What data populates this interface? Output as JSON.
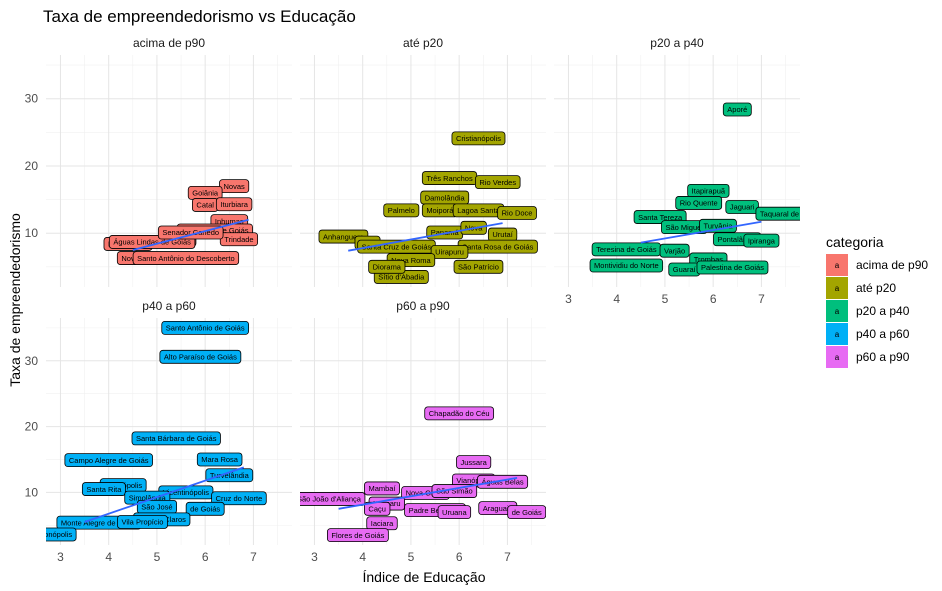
{
  "chart_data": {
    "type": "scatter",
    "title": "Taxa de empreendedorismo vs Educação",
    "xlabel": "Índice de Educação",
    "ylabel": "Taxa de empreendedorismo",
    "xlim": [
      2.7,
      7.8
    ],
    "ylim": [
      2.0,
      36.5
    ],
    "xticks": [
      3,
      4,
      5,
      6,
      7
    ],
    "yticks": [
      10,
      20,
      30
    ],
    "legend": {
      "title": "categoria",
      "position": "right",
      "entries": [
        {
          "name": "acima de p90",
          "color": "#F8766D",
          "key": "a"
        },
        {
          "name": "até p20",
          "color": "#A3A500",
          "key": "a"
        },
        {
          "name": "p20 a p40",
          "color": "#00BF7D",
          "key": "a"
        },
        {
          "name": "p40 a p60",
          "color": "#00B0F6",
          "key": "a"
        },
        {
          "name": "p60 a p90",
          "color": "#E76BF3",
          "key": "a"
        }
      ]
    },
    "panels": [
      {
        "name": "acima de p90",
        "color": "#F8766D",
        "trend": [
          [
            4.5,
            7.5
          ],
          [
            6.9,
            12.0
          ]
        ],
        "points": [
          {
            "label": "Novas",
            "x": 6.6,
            "y": 17.0
          },
          {
            "label": "Goiânia",
            "x": 6.0,
            "y": 16.0
          },
          {
            "label": "Catal",
            "x": 6.0,
            "y": 14.2
          },
          {
            "label": "Iturbiara",
            "x": 6.6,
            "y": 14.3
          },
          {
            "label": "Inhumas",
            "x": 6.5,
            "y": 11.8
          },
          {
            "label": "Valparaíso de Goiás",
            "x": 6.2,
            "y": 10.4
          },
          {
            "label": "Trindade",
            "x": 6.7,
            "y": 9.1
          },
          {
            "label": "Luz",
            "x": 5.6,
            "y": 9.0
          },
          {
            "label": "Novo Gama",
            "x": 4.4,
            "y": 8.4
          },
          {
            "label": "Águas Lindas de Goiás",
            "x": 4.9,
            "y": 8.7
          },
          {
            "label": "Senador Canedo",
            "x": 5.7,
            "y": 10.1
          },
          {
            "label": "Nov",
            "x": 4.4,
            "y": 6.3
          },
          {
            "label": "Santo Antônio do Descoberto",
            "x": 5.6,
            "y": 6.3
          }
        ]
      },
      {
        "name": "até p20",
        "color": "#A3A500",
        "trend": [
          [
            3.7,
            7.4
          ],
          [
            6.9,
            11.5
          ]
        ],
        "points": [
          {
            "label": "Cristianópolis",
            "x": 6.4,
            "y": 24.1
          },
          {
            "label": "Três Ranchos",
            "x": 5.8,
            "y": 18.2
          },
          {
            "label": "Rio Verdes",
            "x": 6.8,
            "y": 17.6
          },
          {
            "label": "Damolândia",
            "x": 5.7,
            "y": 15.3
          },
          {
            "label": "Palmelo",
            "x": 4.8,
            "y": 13.4
          },
          {
            "label": "Moiporá",
            "x": 5.6,
            "y": 13.4
          },
          {
            "label": "Lagoa Santa",
            "x": 6.4,
            "y": 13.4
          },
          {
            "label": "Rio Doce",
            "x": 7.2,
            "y": 13.0
          },
          {
            "label": "Anhanguera",
            "x": 3.6,
            "y": 9.5
          },
          {
            "label": "Panamá",
            "x": 5.7,
            "y": 10.1
          },
          {
            "label": "Nova",
            "x": 6.3,
            "y": 10.8
          },
          {
            "label": "Urutaí",
            "x": 6.9,
            "y": 9.8
          },
          {
            "label": "Pires",
            "x": 4.1,
            "y": 8.6
          },
          {
            "label": "Santa Cruz de Goiás",
            "x": 4.7,
            "y": 8.0
          },
          {
            "label": "Santa Rosa de Goiás",
            "x": 6.8,
            "y": 8.0
          },
          {
            "label": "Uirapuru",
            "x": 5.8,
            "y": 7.2
          },
          {
            "label": "Nova Roma",
            "x": 5.0,
            "y": 6.0
          },
          {
            "label": "São Patrício",
            "x": 6.4,
            "y": 5.0
          },
          {
            "label": "Sítio d'Abadia",
            "x": 4.8,
            "y": 3.5
          },
          {
            "label": "Diorama",
            "x": 4.5,
            "y": 5.0
          }
        ]
      },
      {
        "name": "p20 a p40",
        "color": "#00BF7D",
        "trend": [
          [
            4.5,
            8.6
          ],
          [
            7.0,
            11.7
          ]
        ],
        "points": [
          {
            "label": "Aporé",
            "x": 6.5,
            "y": 28.4
          },
          {
            "label": "Itapirapuã",
            "x": 5.9,
            "y": 16.3
          },
          {
            "label": "Rio Quente",
            "x": 5.7,
            "y": 14.5
          },
          {
            "label": "Jaguari",
            "x": 6.6,
            "y": 13.9
          },
          {
            "label": "Taquaral de Goiás",
            "x": 7.6,
            "y": 12.9
          },
          {
            "label": "Santa Tereza",
            "x": 4.9,
            "y": 12.4
          },
          {
            "label": "São Miguel",
            "x": 5.4,
            "y": 10.9
          },
          {
            "label": "Turvânia",
            "x": 6.1,
            "y": 11.1
          },
          {
            "label": "Pontalândia",
            "x": 6.5,
            "y": 9.1
          },
          {
            "label": "Ipiranga",
            "x": 7.0,
            "y": 8.9
          },
          {
            "label": "Teresina de Goiás",
            "x": 4.2,
            "y": 7.6
          },
          {
            "label": "Varjão",
            "x": 5.2,
            "y": 7.4
          },
          {
            "label": "Trombas",
            "x": 5.9,
            "y": 6.1
          },
          {
            "label": "Guaraí",
            "x": 5.4,
            "y": 4.6
          },
          {
            "label": "Palestina de Goiás",
            "x": 6.4,
            "y": 4.9
          },
          {
            "label": "Montividiu do Norte",
            "x": 4.2,
            "y": 5.2
          }
        ]
      },
      {
        "name": "p40 a p60",
        "color": "#00B0F6",
        "trend": [
          [
            3.5,
            5.5
          ],
          [
            6.8,
            13.8
          ]
        ],
        "points": [
          {
            "label": "Santo Antônio de Goiás",
            "x": 6.0,
            "y": 35.0
          },
          {
            "label": "Alto Paraíso de Goiás",
            "x": 5.9,
            "y": 30.6
          },
          {
            "label": "Santa Bárbara de Goiás",
            "x": 5.4,
            "y": 18.2
          },
          {
            "label": "Campo Alegre de Goiás",
            "x": 4.0,
            "y": 14.9
          },
          {
            "label": "Mara Rosa",
            "x": 6.3,
            "y": 15.0
          },
          {
            "label": "Turvelândia",
            "x": 6.5,
            "y": 12.6
          },
          {
            "label": "Terezópolis",
            "x": 4.3,
            "y": 11.1
          },
          {
            "label": "Santa Rita",
            "x": 3.9,
            "y": 10.5
          },
          {
            "label": "Vicentinópolis",
            "x": 5.6,
            "y": 10.0
          },
          {
            "label": "Simolândia",
            "x": 4.8,
            "y": 9.2
          },
          {
            "label": "Cruz do Norte",
            "x": 6.7,
            "y": 9.1
          },
          {
            "label": "São José",
            "x": 5.0,
            "y": 7.8
          },
          {
            "label": "de Goiás",
            "x": 6.0,
            "y": 7.5
          },
          {
            "label": "Montes Claros",
            "x": 5.1,
            "y": 5.9
          },
          {
            "label": "Monte Alegre de Goiás",
            "x": 3.8,
            "y": 5.4
          },
          {
            "label": "Vila Propício",
            "x": 4.7,
            "y": 5.5
          },
          {
            "label": "Bonópolis",
            "x": 2.9,
            "y": 3.6
          }
        ]
      },
      {
        "name": "p60 a p90",
        "color": "#E76BF3",
        "trend": [
          [
            3.5,
            7.5
          ],
          [
            7.2,
            12.2
          ]
        ],
        "points": [
          {
            "label": "Chapadão do Céu",
            "x": 6.0,
            "y": 22.0
          },
          {
            "label": "Jussara",
            "x": 6.3,
            "y": 14.6
          },
          {
            "label": "Vianópolis",
            "x": 6.3,
            "y": 11.8
          },
          {
            "label": "Águas Belas",
            "x": 6.9,
            "y": 11.6
          },
          {
            "label": "Nova Glória",
            "x": 5.3,
            "y": 9.9
          },
          {
            "label": "São Simão",
            "x": 5.9,
            "y": 10.2
          },
          {
            "label": "São João d'Aliança",
            "x": 3.3,
            "y": 9.0
          },
          {
            "label": "Mambaí",
            "x": 4.4,
            "y": 10.6
          },
          {
            "label": "Itaguaru",
            "x": 4.5,
            "y": 8.3
          },
          {
            "label": "Caçu",
            "x": 4.3,
            "y": 7.5
          },
          {
            "label": "Padre Bernardo",
            "x": 5.5,
            "y": 7.3
          },
          {
            "label": "Uruana",
            "x": 5.9,
            "y": 7.0
          },
          {
            "label": "Araguaia",
            "x": 6.8,
            "y": 7.6
          },
          {
            "label": "de Goiás",
            "x": 7.4,
            "y": 7.0
          },
          {
            "label": "Iaciara",
            "x": 4.4,
            "y": 5.3
          },
          {
            "label": "Flores de Goiás",
            "x": 3.9,
            "y": 3.5
          }
        ]
      }
    ]
  }
}
